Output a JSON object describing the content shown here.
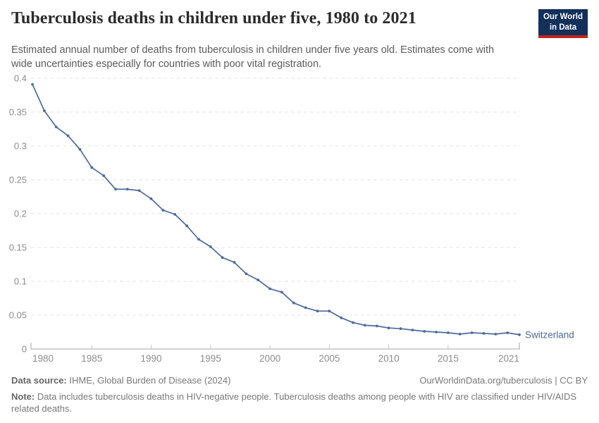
{
  "header": {
    "title": "Tuberculosis deaths in children under five, 1980 to 2021",
    "subtitle": "Estimated annual number of deaths from tuberculosis in children under five years old. Estimates come with wide uncertainties especially for countries with poor vital registration.",
    "logo": {
      "line1": "Our World",
      "line2": "in Data",
      "bg_color": "#12305A",
      "stripe_color": "#C5231B"
    }
  },
  "chart_data": {
    "type": "line",
    "title": "Tuberculosis deaths in children under five, 1980 to 2021",
    "xlabel": "",
    "ylabel": "",
    "xlim": [
      1980,
      2021
    ],
    "ylim": [
      0,
      0.4
    ],
    "xticks": [
      1980,
      1985,
      1990,
      1995,
      2000,
      2005,
      2010,
      2015,
      2021
    ],
    "yticks": [
      0,
      0.05,
      0.1,
      0.15,
      0.2,
      0.25,
      0.3,
      0.35,
      0.4
    ],
    "grid": "horizontal-dashed",
    "legend_position": "end-of-line",
    "x": [
      1980,
      1981,
      1982,
      1983,
      1984,
      1985,
      1986,
      1987,
      1988,
      1989,
      1990,
      1991,
      1992,
      1993,
      1994,
      1995,
      1996,
      1997,
      1998,
      1999,
      2000,
      2001,
      2002,
      2003,
      2004,
      2005,
      2006,
      2007,
      2008,
      2009,
      2010,
      2011,
      2012,
      2013,
      2014,
      2015,
      2016,
      2017,
      2018,
      2019,
      2020,
      2021
    ],
    "series": [
      {
        "name": "Switzerland",
        "color": "#4C6A9C",
        "values": [
          0.391,
          0.352,
          0.328,
          0.315,
          0.295,
          0.268,
          0.256,
          0.236,
          0.236,
          0.234,
          0.222,
          0.205,
          0.199,
          0.182,
          0.162,
          0.151,
          0.135,
          0.128,
          0.111,
          0.102,
          0.089,
          0.084,
          0.068,
          0.061,
          0.056,
          0.056,
          0.046,
          0.039,
          0.035,
          0.034,
          0.031,
          0.03,
          0.028,
          0.026,
          0.025,
          0.024,
          0.022,
          0.024,
          0.023,
          0.022,
          0.024,
          0.021
        ]
      }
    ]
  },
  "footer": {
    "source_label": "Data source:",
    "source_text": "IHME, Global Burden of Disease (2024)",
    "link_text": "OurWorldinData.org/tuberculosis | CC BY",
    "note_label": "Note:",
    "note_text": "Data includes tuberculosis deaths in HIV-negative people. Tuberculosis deaths among people with HIV are classified under HIV/AIDS related deaths."
  },
  "colors": {
    "line": "#4C6A9C",
    "grid": "#e3e3e3",
    "axis": "#a5a5a5",
    "tick": "#c9c9c9",
    "tick_label": "#8c8c8c"
  }
}
